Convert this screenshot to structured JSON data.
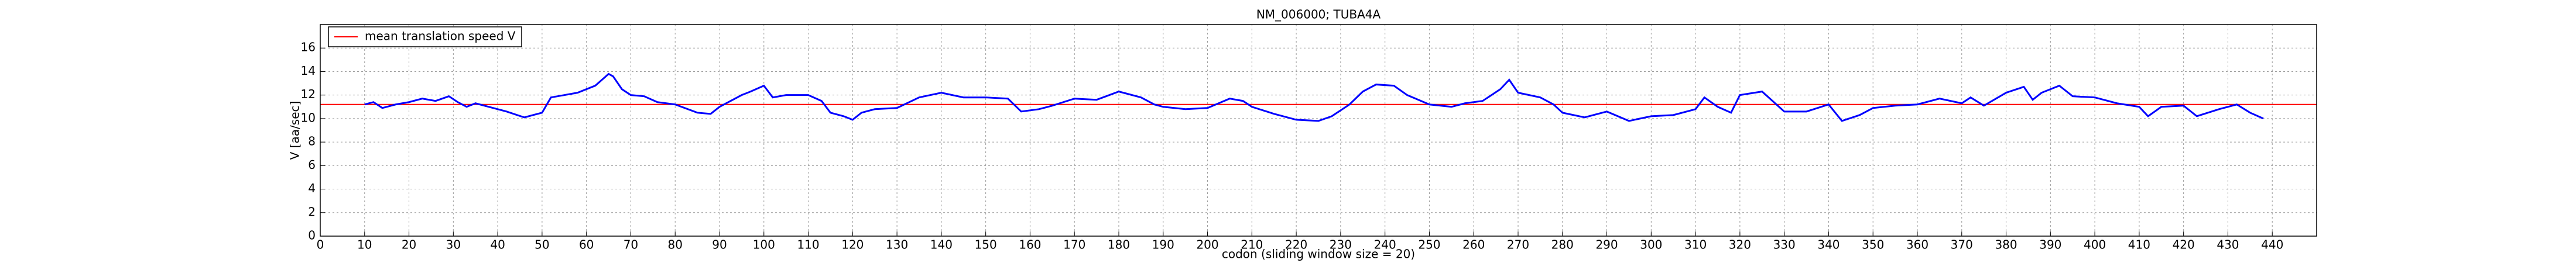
{
  "chart_data": {
    "type": "line",
    "title": "NM_006000; TUBA4A",
    "xlabel": "codon  (sliding window size = 20)",
    "ylabel": "V [aa/sec]",
    "x": [
      10,
      12,
      14,
      17,
      20,
      23,
      26,
      29,
      31,
      33,
      35,
      38,
      42,
      46,
      48,
      50,
      52,
      55,
      58,
      62,
      65,
      66,
      68,
      70,
      73,
      76,
      80,
      85,
      88,
      90,
      95,
      97,
      100,
      102,
      105,
      110,
      113,
      115,
      118,
      120,
      122,
      125,
      130,
      135,
      140,
      145,
      150,
      155,
      158,
      162,
      165,
      170,
      175,
      180,
      185,
      188,
      190,
      195,
      200,
      205,
      208,
      210,
      215,
      220,
      225,
      228,
      232,
      235,
      238,
      242,
      245,
      250,
      255,
      258,
      262,
      266,
      268,
      270,
      275,
      278,
      280,
      285,
      290,
      295,
      300,
      305,
      310,
      312,
      315,
      318,
      320,
      325,
      330,
      335,
      340,
      343,
      347,
      350,
      355,
      360,
      365,
      370,
      372,
      375,
      380,
      384,
      386,
      388,
      392,
      395,
      400,
      405,
      410,
      412,
      415,
      420,
      423,
      428,
      432,
      435,
      438
    ],
    "series": [
      {
        "name": "V",
        "color": "#0000ff",
        "values": [
          11.2,
          11.4,
          10.9,
          11.2,
          11.4,
          11.7,
          11.5,
          11.9,
          11.4,
          11.0,
          11.3,
          11.0,
          10.6,
          10.1,
          10.3,
          10.5,
          11.8,
          12.0,
          12.2,
          12.8,
          13.8,
          13.6,
          12.5,
          12.0,
          11.9,
          11.4,
          11.2,
          10.5,
          10.4,
          11.0,
          12.0,
          12.3,
          12.8,
          11.8,
          12.0,
          12.0,
          11.5,
          10.5,
          10.2,
          9.9,
          10.5,
          10.8,
          10.9,
          11.8,
          12.2,
          11.8,
          11.8,
          11.7,
          10.6,
          10.8,
          11.1,
          11.7,
          11.6,
          12.3,
          11.8,
          11.2,
          11.0,
          10.8,
          10.9,
          11.7,
          11.5,
          11.0,
          10.4,
          9.9,
          9.8,
          10.2,
          11.2,
          12.3,
          12.9,
          12.8,
          12.0,
          11.2,
          11.0,
          11.3,
          11.5,
          12.5,
          13.3,
          12.2,
          11.8,
          11.2,
          10.5,
          10.1,
          10.6,
          9.8,
          10.2,
          10.3,
          10.8,
          11.8,
          11.0,
          10.5,
          12.0,
          12.3,
          10.6,
          10.6,
          11.2,
          9.8,
          10.3,
          10.9,
          11.1,
          11.2,
          11.7,
          11.3,
          11.8,
          11.1,
          12.2,
          12.7,
          11.6,
          12.2,
          12.8,
          11.9,
          11.8,
          11.3,
          11.0,
          10.2,
          11.0,
          11.1,
          10.2,
          10.8,
          11.2,
          10.5,
          10.0
        ]
      }
    ],
    "mean_line": {
      "name": "mean translation speed V",
      "value": 11.2,
      "color": "#ff0000"
    },
    "xlim": [
      0,
      450
    ],
    "xticks": [
      0,
      10,
      20,
      30,
      40,
      50,
      60,
      70,
      80,
      90,
      100,
      110,
      120,
      130,
      140,
      150,
      160,
      170,
      180,
      190,
      200,
      210,
      220,
      230,
      240,
      250,
      260,
      270,
      280,
      290,
      300,
      310,
      320,
      330,
      340,
      350,
      360,
      370,
      380,
      390,
      400,
      410,
      420,
      430,
      440
    ],
    "ylim": [
      0,
      18
    ],
    "yticks": [
      0,
      2,
      4,
      6,
      8,
      10,
      12,
      14,
      16
    ],
    "grid": true,
    "legend": "upper left"
  }
}
